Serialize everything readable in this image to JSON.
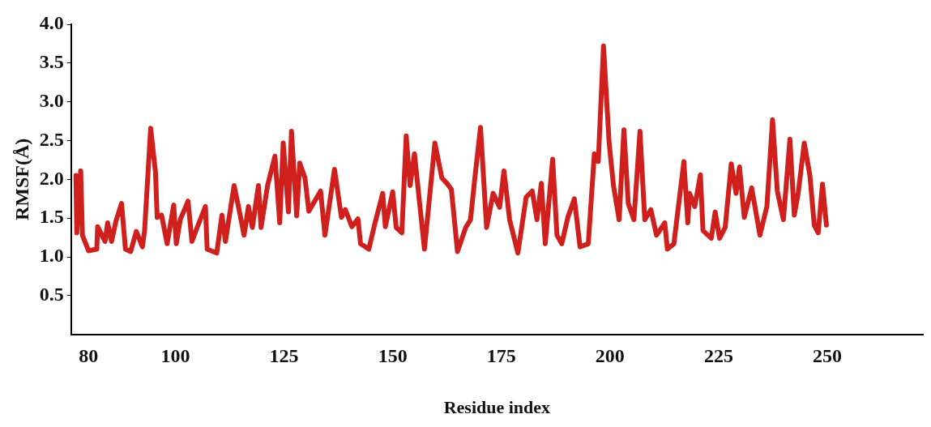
{
  "chart_data": {
    "type": "line",
    "xlabel": "Residue index",
    "ylabel": "RMSF(Å)",
    "xlim": [
      76,
      272
    ],
    "xticks": [
      80,
      100,
      125,
      150,
      175,
      200,
      225,
      250
    ],
    "ylim": [
      0,
      4.0
    ],
    "yticks": [
      {
        "value": 0.5,
        "label": "0.5"
      },
      {
        "value": 1,
        "label": "1.0"
      },
      {
        "value": 1.5,
        "label": "1.5"
      },
      {
        "value": 2,
        "label": "2.0"
      },
      {
        "value": 2.5,
        "label": "2.5"
      },
      {
        "value": 3,
        "label": "3.0"
      },
      {
        "value": 3.5,
        "label": "3.5"
      },
      {
        "value": 4,
        "label": "4.0"
      }
    ],
    "grid": false,
    "legend": false,
    "marker": "none",
    "line_style": "solid",
    "x": [
      77.1,
      77.3,
      78.2,
      78.6,
      80.0,
      81.9,
      82.1,
      83.8,
      84.4,
      85.3,
      86.3,
      87.6,
      88.5,
      89.7,
      91.0,
      92.4,
      92.9,
      94.3,
      95.4,
      95.8,
      96.8,
      98.1,
      99.6,
      100.2,
      101.1,
      102.9,
      103.8,
      105.0,
      106.9,
      107.3,
      109.5,
      110.7,
      111.5,
      113.5,
      114.5,
      115.8,
      116.8,
      117.7,
      119.1,
      119.7,
      121.2,
      122.9,
      124.0,
      124.8,
      126.0,
      126.7,
      127.9,
      128.6,
      129.8,
      130.7,
      133.4,
      134.4,
      136.6,
      138.2,
      139.1,
      140.6,
      142.0,
      142.6,
      144.5,
      145.8,
      147.7,
      148.3,
      150.0,
      150.8,
      152.1,
      153.1,
      154.0,
      155.0,
      157.3,
      159.7,
      161.3,
      162.6,
      163.5,
      164.9,
      166.8,
      167.9,
      168.9,
      170.2,
      171.6,
      173.1,
      174.6,
      175.6,
      176.9,
      178.8,
      180.7,
      182.1,
      183.2,
      184.2,
      185.1,
      186.8,
      187.8,
      188.9,
      190.3,
      191.8,
      193.1,
      195.0,
      196.4,
      197.3,
      198.5,
      199.8,
      200.8,
      202.1,
      203.2,
      204.2,
      205.5,
      206.9,
      208.0,
      209.4,
      210.7,
      212.6,
      213.2,
      214.7,
      217.0,
      217.9,
      218.3,
      219.5,
      220.8,
      221.4,
      223.3,
      224.2,
      225.2,
      226.5,
      227.9,
      229.0,
      229.8,
      230.9,
      232.6,
      234.5,
      236.1,
      237.4,
      238.5,
      239.9,
      241.4,
      242.4,
      243.3,
      244.7,
      246.0,
      247.0,
      247.9,
      248.9,
      249.8
    ],
    "series": [
      {
        "color": "#d0201e",
        "values": [
          2.05,
          1.31,
          2.11,
          1.28,
          1.08,
          1.1,
          1.39,
          1.2,
          1.44,
          1.2,
          1.46,
          1.69,
          1.1,
          1.07,
          1.33,
          1.13,
          1.34,
          2.66,
          2.1,
          1.51,
          1.54,
          1.17,
          1.67,
          1.17,
          1.48,
          1.72,
          1.2,
          1.38,
          1.65,
          1.1,
          1.05,
          1.54,
          1.2,
          1.92,
          1.65,
          1.28,
          1.65,
          1.38,
          1.92,
          1.38,
          1.92,
          2.3,
          1.44,
          2.47,
          1.58,
          2.62,
          1.53,
          2.21,
          2.02,
          1.59,
          1.85,
          1.28,
          2.13,
          1.51,
          1.61,
          1.39,
          1.49,
          1.17,
          1.1,
          1.41,
          1.82,
          1.39,
          1.84,
          1.38,
          1.31,
          2.56,
          1.92,
          2.33,
          1.1,
          2.47,
          2.02,
          1.94,
          1.87,
          1.07,
          1.38,
          1.48,
          2.02,
          2.67,
          1.38,
          1.82,
          1.64,
          2.11,
          1.48,
          1.05,
          1.77,
          1.85,
          1.48,
          1.95,
          1.17,
          2.26,
          1.28,
          1.17,
          1.51,
          1.75,
          1.13,
          1.17,
          2.33,
          2.23,
          3.72,
          2.47,
          1.92,
          1.48,
          2.64,
          1.69,
          1.48,
          2.62,
          1.48,
          1.61,
          1.28,
          1.44,
          1.1,
          1.17,
          2.23,
          1.44,
          1.82,
          1.65,
          2.06,
          1.34,
          1.24,
          1.58,
          1.24,
          1.38,
          2.2,
          1.82,
          2.16,
          1.51,
          1.89,
          1.28,
          1.65,
          2.77,
          1.85,
          1.48,
          2.52,
          1.54,
          1.82,
          2.47,
          2.05,
          1.41,
          1.31,
          1.94,
          1.41
        ]
      }
    ]
  }
}
